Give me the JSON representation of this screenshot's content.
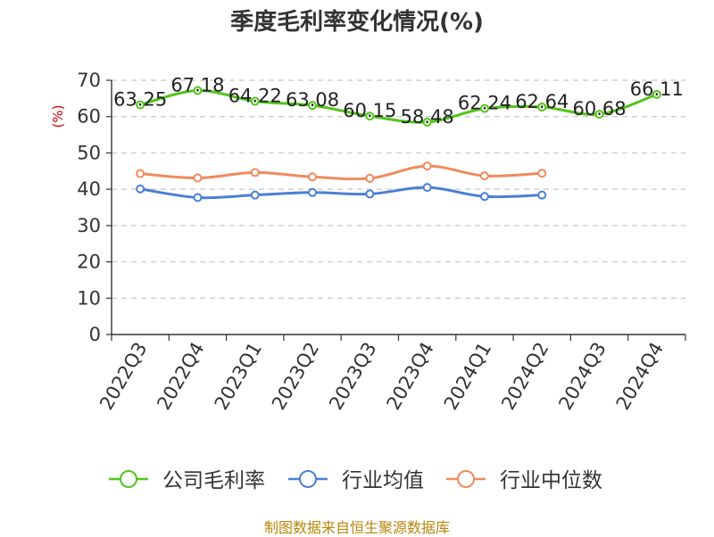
{
  "chart_data": {
    "type": "line",
    "title": "季度毛利率变化情况(%)",
    "ylabel": "(%)",
    "xlabel": "",
    "ylim": [
      0,
      70
    ],
    "yticks": [
      0,
      10,
      20,
      30,
      40,
      50,
      60,
      70
    ],
    "categories": [
      "2022Q3",
      "2022Q4",
      "2023Q1",
      "2023Q2",
      "2023Q3",
      "2023Q4",
      "2024Q1",
      "2024Q2",
      "2024Q3",
      "2024Q4"
    ],
    "grid": true,
    "legend_position": "bottom",
    "series": [
      {
        "name": "公司毛利率",
        "color": "#52c41a",
        "values": [
          63.25,
          67.18,
          64.22,
          63.08,
          60.15,
          58.48,
          62.24,
          62.64,
          60.68,
          66.11
        ],
        "labels": [
          "63.25",
          "67.18",
          "64.22",
          "63.08",
          "60.15",
          "58.48",
          "62.24",
          "62.64",
          "60.68",
          "66.11"
        ]
      },
      {
        "name": "行业均值",
        "color": "#4a7fd6",
        "values": [
          40.1,
          37.7,
          38.4,
          39.1,
          38.7,
          40.5,
          38.0,
          38.4,
          null,
          null
        ]
      },
      {
        "name": "行业中位数",
        "color": "#f08a5d",
        "values": [
          44.3,
          43.1,
          44.6,
          43.4,
          43.0,
          46.4,
          43.7,
          44.4,
          null,
          null
        ]
      }
    ]
  },
  "source": "制图数据来自恒生聚源数据库"
}
